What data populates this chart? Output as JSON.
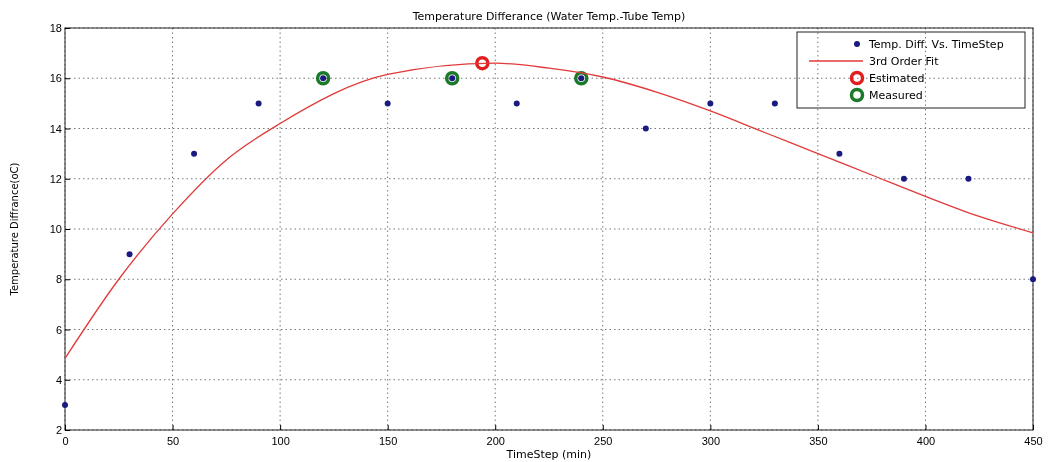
{
  "chart_data": {
    "type": "scatter",
    "title": "Temperature Differance (Water Temp.-Tube Temp)",
    "xlabel": "TimeStep (min)",
    "ylabel": "Temperature Diffrance(oC)",
    "xlim": [
      0,
      450
    ],
    "xticks": [
      0,
      50,
      100,
      150,
      200,
      250,
      300,
      350,
      400,
      450
    ],
    "ylim": [
      2,
      18
    ],
    "yticks": [
      2,
      4,
      6,
      8,
      10,
      12,
      14,
      16,
      18
    ],
    "grid": true,
    "legend": "top right",
    "series": [
      {
        "name": "Temp. Diff. Vs. TimeStep",
        "marker": "circle",
        "color": "#1a1a80",
        "x": [
          0,
          30,
          60,
          90,
          120,
          150,
          180,
          210,
          240,
          270,
          300,
          330,
          360,
          390,
          420,
          450
        ],
        "values": [
          3,
          9,
          13,
          15,
          16,
          15,
          16,
          15,
          16,
          14,
          15,
          15,
          13,
          12,
          12,
          8
        ]
      },
      {
        "name": "3rd Order Fit",
        "type": "line",
        "line_style": "solid",
        "color": "#e03a3a",
        "x": [
          0,
          25,
          50,
          75,
          100,
          150,
          200,
          225,
          250,
          275,
          300,
          325,
          350,
          375,
          400,
          425,
          450
        ],
        "values": [
          4.85,
          8.0,
          10.6,
          12.75,
          14.2,
          16.15,
          16.6,
          16.4,
          16.05,
          15.45,
          14.7,
          13.85,
          13.0,
          12.15,
          11.3,
          10.5,
          9.85
        ]
      },
      {
        "name": "Estimated",
        "marker": "circle",
        "color": "#e02020",
        "x": [
          194
        ],
        "values": [
          16.6
        ]
      },
      {
        "name": "Measured",
        "marker": "circle",
        "color": "#1a7a2a",
        "x": [
          120,
          180,
          240
        ],
        "values": [
          16,
          16,
          16
        ]
      }
    ]
  }
}
